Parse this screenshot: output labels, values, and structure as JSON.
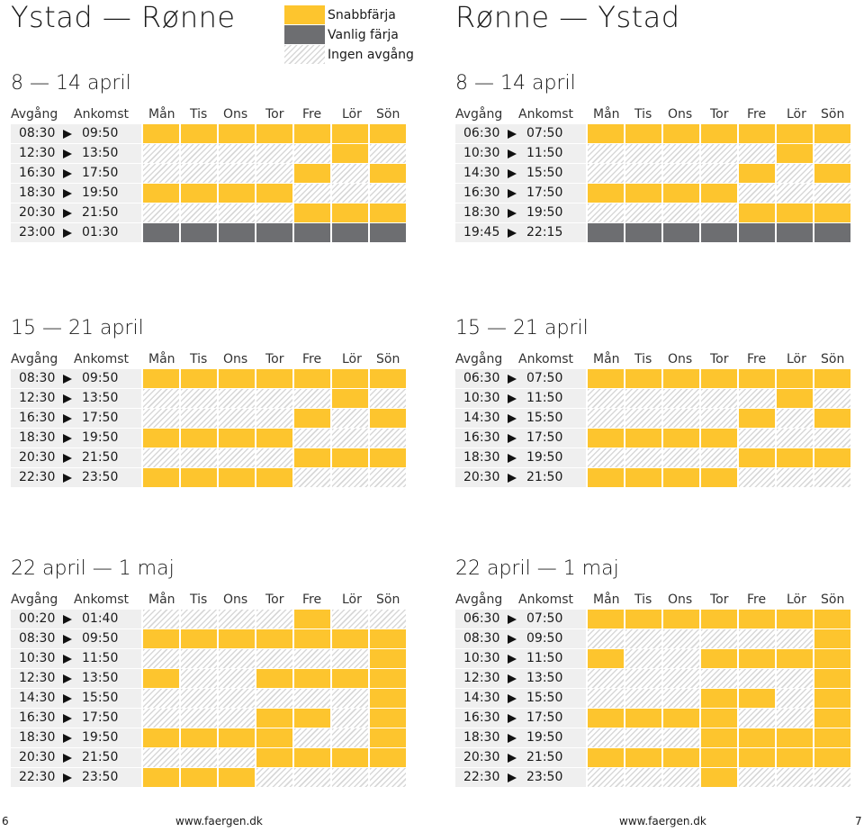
{
  "legend": [
    {
      "code": "S",
      "label": "Snabbfärja",
      "color": "#fdc52e"
    },
    {
      "code": "V",
      "label": "Vanlig färja",
      "color": "#6d6e71"
    },
    {
      "code": "N",
      "label": "Ingen avgång",
      "color": "#d8d8d8"
    }
  ],
  "headers": {
    "avgang": "Avgång",
    "ankomst": "Ankomst",
    "days": [
      "Mån",
      "Tis",
      "Ons",
      "Tor",
      "Fre",
      "Lör",
      "Sön"
    ]
  },
  "routes": [
    {
      "title": "Ystad — Rønne",
      "periods": [
        {
          "title": "8 — 14 april",
          "rows": [
            {
              "dep": "08:30",
              "arr": "09:50",
              "days": [
                "S",
                "S",
                "S",
                "S",
                "S",
                "S",
                "S"
              ]
            },
            {
              "dep": "12:30",
              "arr": "13:50",
              "days": [
                "N",
                "N",
                "N",
                "N",
                "N",
                "S",
                "N"
              ]
            },
            {
              "dep": "16:30",
              "arr": "17:50",
              "days": [
                "N",
                "N",
                "N",
                "N",
                "S",
                "N",
                "S"
              ]
            },
            {
              "dep": "18:30",
              "arr": "19:50",
              "days": [
                "S",
                "S",
                "S",
                "S",
                "N",
                "N",
                "N"
              ]
            },
            {
              "dep": "20:30",
              "arr": "21:50",
              "days": [
                "N",
                "N",
                "N",
                "N",
                "S",
                "S",
                "S"
              ]
            },
            {
              "dep": "23:00",
              "arr": "01:30",
              "days": [
                "V",
                "V",
                "V",
                "V",
                "V",
                "V",
                "V"
              ]
            }
          ]
        },
        {
          "title": "15 — 21 april",
          "rows": [
            {
              "dep": "08:30",
              "arr": "09:50",
              "days": [
                "S",
                "S",
                "S",
                "S",
                "S",
                "S",
                "S"
              ]
            },
            {
              "dep": "12:30",
              "arr": "13:50",
              "days": [
                "N",
                "N",
                "N",
                "N",
                "N",
                "S",
                "N"
              ]
            },
            {
              "dep": "16:30",
              "arr": "17:50",
              "days": [
                "N",
                "N",
                "N",
                "N",
                "S",
                "N",
                "S"
              ]
            },
            {
              "dep": "18:30",
              "arr": "19:50",
              "days": [
                "S",
                "S",
                "S",
                "S",
                "N",
                "N",
                "N"
              ]
            },
            {
              "dep": "20:30",
              "arr": "21:50",
              "days": [
                "N",
                "N",
                "N",
                "N",
                "S",
                "S",
                "S"
              ]
            },
            {
              "dep": "22:30",
              "arr": "23:50",
              "days": [
                "S",
                "S",
                "S",
                "S",
                "N",
                "N",
                "N"
              ]
            }
          ]
        },
        {
          "title": "22 april — 1 maj",
          "rows": [
            {
              "dep": "00:20",
              "arr": "01:40",
              "days": [
                "N",
                "N",
                "N",
                "N",
                "S",
                "N",
                "N"
              ]
            },
            {
              "dep": "08:30",
              "arr": "09:50",
              "days": [
                "S",
                "S",
                "S",
                "S",
                "S",
                "S",
                "S"
              ]
            },
            {
              "dep": "10:30",
              "arr": "11:50",
              "days": [
                "N",
                "N",
                "N",
                "N",
                "N",
                "N",
                "S"
              ]
            },
            {
              "dep": "12:30",
              "arr": "13:50",
              "days": [
                "S",
                "N",
                "N",
                "S",
                "S",
                "S",
                "S"
              ]
            },
            {
              "dep": "14:30",
              "arr": "15:50",
              "days": [
                "N",
                "N",
                "N",
                "N",
                "N",
                "N",
                "S"
              ]
            },
            {
              "dep": "16:30",
              "arr": "17:50",
              "days": [
                "N",
                "N",
                "N",
                "S",
                "S",
                "N",
                "S"
              ]
            },
            {
              "dep": "18:30",
              "arr": "19:50",
              "days": [
                "S",
                "S",
                "S",
                "S",
                "N",
                "N",
                "S"
              ]
            },
            {
              "dep": "20:30",
              "arr": "21:50",
              "days": [
                "N",
                "N",
                "N",
                "S",
                "S",
                "S",
                "S"
              ]
            },
            {
              "dep": "22:30",
              "arr": "23:50",
              "days": [
                "S",
                "S",
                "S",
                "N",
                "N",
                "N",
                "N"
              ]
            }
          ]
        }
      ]
    },
    {
      "title": "Rønne — Ystad",
      "periods": [
        {
          "title": "8 — 14 april",
          "rows": [
            {
              "dep": "06:30",
              "arr": "07:50",
              "days": [
                "S",
                "S",
                "S",
                "S",
                "S",
                "S",
                "S"
              ]
            },
            {
              "dep": "10:30",
              "arr": "11:50",
              "days": [
                "N",
                "N",
                "N",
                "N",
                "N",
                "S",
                "N"
              ]
            },
            {
              "dep": "14:30",
              "arr": "15:50",
              "days": [
                "N",
                "N",
                "N",
                "N",
                "S",
                "N",
                "S"
              ]
            },
            {
              "dep": "16:30",
              "arr": "17:50",
              "days": [
                "S",
                "S",
                "S",
                "S",
                "N",
                "N",
                "N"
              ]
            },
            {
              "dep": "18:30",
              "arr": "19:50",
              "days": [
                "N",
                "N",
                "N",
                "N",
                "S",
                "S",
                "S"
              ]
            },
            {
              "dep": "19:45",
              "arr": "22:15",
              "days": [
                "V",
                "V",
                "V",
                "V",
                "V",
                "V",
                "V"
              ]
            }
          ]
        },
        {
          "title": "15 — 21 april",
          "rows": [
            {
              "dep": "06:30",
              "arr": "07:50",
              "days": [
                "S",
                "S",
                "S",
                "S",
                "S",
                "S",
                "S"
              ]
            },
            {
              "dep": "10:30",
              "arr": "11:50",
              "days": [
                "N",
                "N",
                "N",
                "N",
                "N",
                "S",
                "N"
              ]
            },
            {
              "dep": "14:30",
              "arr": "15:50",
              "days": [
                "N",
                "N",
                "N",
                "N",
                "S",
                "N",
                "S"
              ]
            },
            {
              "dep": "16:30",
              "arr": "17:50",
              "days": [
                "S",
                "S",
                "S",
                "S",
                "N",
                "N",
                "N"
              ]
            },
            {
              "dep": "18:30",
              "arr": "19:50",
              "days": [
                "N",
                "N",
                "N",
                "N",
                "S",
                "S",
                "S"
              ]
            },
            {
              "dep": "20:30",
              "arr": "21:50",
              "days": [
                "S",
                "S",
                "S",
                "S",
                "N",
                "N",
                "N"
              ]
            }
          ]
        },
        {
          "title": "22 april — 1 maj",
          "rows": [
            {
              "dep": "06:30",
              "arr": "07:50",
              "days": [
                "S",
                "S",
                "S",
                "S",
                "S",
                "S",
                "S"
              ]
            },
            {
              "dep": "08:30",
              "arr": "09:50",
              "days": [
                "N",
                "N",
                "N",
                "N",
                "N",
                "N",
                "S"
              ]
            },
            {
              "dep": "10:30",
              "arr": "11:50",
              "days": [
                "S",
                "N",
                "N",
                "S",
                "S",
                "S",
                "S"
              ]
            },
            {
              "dep": "12:30",
              "arr": "13:50",
              "days": [
                "N",
                "N",
                "N",
                "N",
                "N",
                "N",
                "S"
              ]
            },
            {
              "dep": "14:30",
              "arr": "15:50",
              "days": [
                "N",
                "N",
                "N",
                "S",
                "S",
                "N",
                "S"
              ]
            },
            {
              "dep": "16:30",
              "arr": "17:50",
              "days": [
                "S",
                "S",
                "S",
                "S",
                "N",
                "N",
                "S"
              ]
            },
            {
              "dep": "18:30",
              "arr": "19:50",
              "days": [
                "N",
                "N",
                "N",
                "S",
                "S",
                "S",
                "S"
              ]
            },
            {
              "dep": "20:30",
              "arr": "21:50",
              "days": [
                "S",
                "S",
                "S",
                "S",
                "S",
                "S",
                "S"
              ]
            },
            {
              "dep": "22:30",
              "arr": "23:50",
              "days": [
                "N",
                "N",
                "N",
                "S",
                "N",
                "N",
                "N"
              ]
            }
          ]
        }
      ]
    }
  ],
  "footer": {
    "left_page": "6",
    "left_url": "www.faergen.dk",
    "right_url": "www.faergen.dk",
    "right_page": "7"
  }
}
